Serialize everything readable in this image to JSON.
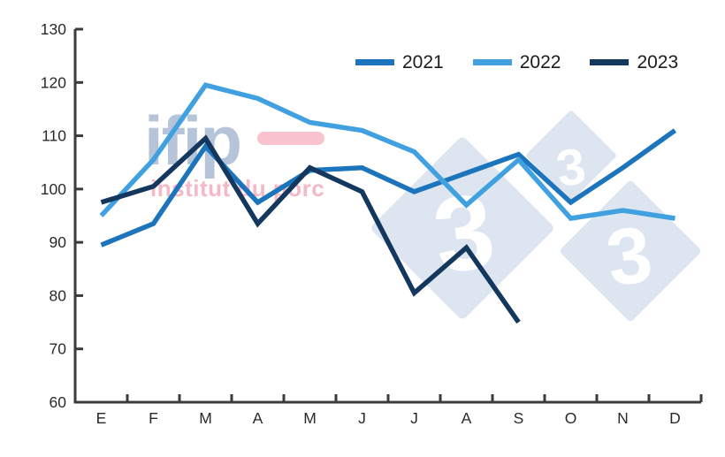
{
  "chart_data": {
    "type": "line",
    "title": "",
    "xlabel": "",
    "ylabel": "",
    "categories": [
      "E",
      "F",
      "M",
      "A",
      "M",
      "J",
      "J",
      "A",
      "S",
      "O",
      "N",
      "D"
    ],
    "series": [
      {
        "name": "2021",
        "color": "#1c75bc",
        "values": [
          89.5,
          93.5,
          108,
          97.5,
          103.5,
          104,
          99.5,
          103,
          106.5,
          97.5,
          104,
          111
        ]
      },
      {
        "name": "2022",
        "color": "#41a1e0",
        "values": [
          95,
          105.5,
          119.5,
          117,
          112.5,
          111,
          107,
          97,
          105.5,
          94.5,
          96,
          94.5
        ]
      },
      {
        "name": "2023",
        "color": "#14375d",
        "values": [
          97.5,
          100.5,
          109.5,
          93.5,
          104,
          99.5,
          80.5,
          89,
          75
        ]
      }
    ],
    "ylim": [
      60,
      130
    ],
    "ytick_step": 10,
    "y_tick_labels": [
      "60",
      "70",
      "80",
      "90",
      "100",
      "110",
      "120",
      "130"
    ],
    "grid": false,
    "legend_position": "top-center"
  },
  "axes": {
    "line_color": "#3b3b3b",
    "label_color": "#2a2a2a"
  },
  "watermarks": {
    "ifip": {
      "wordmark": "ifip",
      "tagline": "institut du porc",
      "wordmark_color": "#b6c4d9",
      "dash_color": "#f8c3cf",
      "tagline_color": "#f4b8c6"
    },
    "tres3": {
      "digit": "3",
      "diamond_color": "#dde5f1",
      "digit_color": "#ffffff"
    }
  }
}
